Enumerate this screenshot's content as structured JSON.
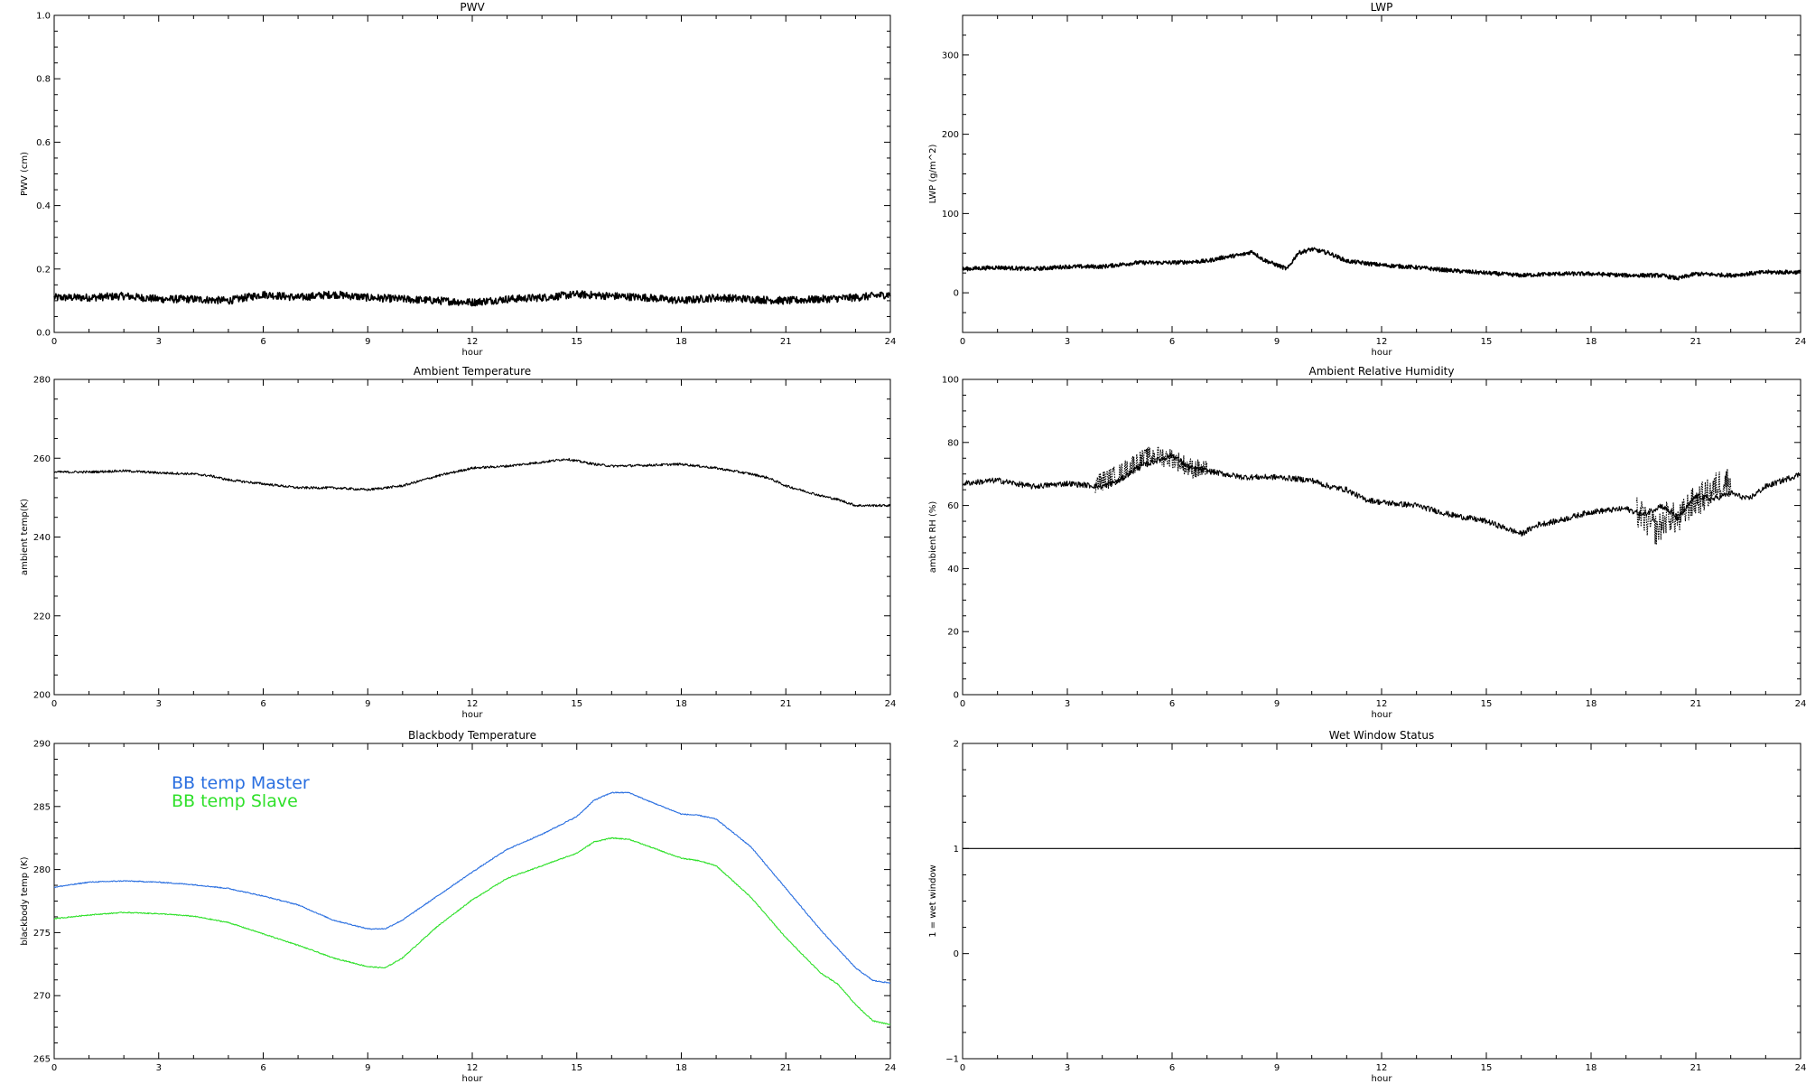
{
  "figure": {
    "colors": {
      "axes": "#000000",
      "master": "#2a6fe0",
      "slave": "#2fe02a",
      "line": "#000000"
    }
  },
  "chart_data": [
    {
      "id": "pwv",
      "type": "line",
      "title": "PWV",
      "xlabel": "hour",
      "ylabel": "PWV (cm)",
      "xlim": [
        0,
        24
      ],
      "ylim": [
        0,
        1.0
      ],
      "xticks": [
        0,
        3,
        6,
        9,
        12,
        15,
        18,
        21,
        24
      ],
      "yticks": [
        0.0,
        0.2,
        0.4,
        0.6,
        0.8,
        1.0
      ],
      "ytick_labels": [
        "0.0",
        "0.2",
        "0.4",
        "0.6",
        "0.8",
        "1.0"
      ],
      "series": [
        {
          "color": "#000000",
          "noise": 0.012,
          "style": "thick",
          "x": [
            0,
            1,
            2,
            3,
            4,
            5,
            6,
            7,
            8,
            9,
            10,
            11,
            12,
            13,
            14,
            15,
            16,
            17,
            18,
            19,
            20,
            21,
            22,
            23,
            24
          ],
          "y": [
            0.11,
            0.11,
            0.115,
            0.105,
            0.105,
            0.1,
            0.12,
            0.11,
            0.12,
            0.11,
            0.105,
            0.1,
            0.095,
            0.105,
            0.11,
            0.12,
            0.115,
            0.11,
            0.1,
            0.11,
            0.105,
            0.1,
            0.105,
            0.11,
            0.12
          ]
        }
      ]
    },
    {
      "id": "lwp",
      "type": "line",
      "title": "LWP",
      "xlabel": "hour",
      "ylabel": "LWP (g/m^2)",
      "xlim": [
        0,
        24
      ],
      "ylim": [
        -50,
        350
      ],
      "xticks": [
        0,
        3,
        6,
        9,
        12,
        15,
        18,
        21,
        24
      ],
      "yticks": [
        0,
        100,
        200,
        300
      ],
      "ytick_labels": [
        "0",
        "100",
        "200",
        "300"
      ],
      "series": [
        {
          "color": "#000000",
          "noise": 2.5,
          "style": "thick",
          "x": [
            0,
            1,
            2,
            3,
            4,
            5,
            6,
            7,
            7.5,
            8,
            8.3,
            8.6,
            9,
            9.3,
            9.6,
            10,
            10.5,
            11,
            12,
            13,
            14,
            15,
            16,
            17,
            18,
            19,
            20,
            20.5,
            21,
            22,
            23,
            24
          ],
          "y": [
            30,
            32,
            30,
            33,
            33,
            38,
            38,
            40,
            45,
            48,
            52,
            42,
            35,
            30,
            50,
            55,
            50,
            40,
            35,
            32,
            28,
            25,
            22,
            24,
            24,
            22,
            22,
            18,
            24,
            22,
            26,
            26
          ]
        }
      ]
    },
    {
      "id": "ambient-temp",
      "type": "line",
      "title": "Ambient Temperature",
      "xlabel": "hour",
      "ylabel": "ambient temp(K)",
      "xlim": [
        0,
        24
      ],
      "ylim": [
        200,
        280
      ],
      "xticks": [
        0,
        3,
        6,
        9,
        12,
        15,
        18,
        21,
        24
      ],
      "yticks": [
        200,
        220,
        240,
        260,
        280
      ],
      "ytick_labels": [
        "200",
        "220",
        "240",
        "260",
        "280"
      ],
      "series": [
        {
          "color": "#000000",
          "noise": 0.3,
          "style": "thin",
          "x": [
            0,
            1,
            2,
            3,
            4,
            4.5,
            5,
            6,
            7,
            8,
            9,
            10,
            11,
            12,
            13,
            14,
            14.7,
            15.5,
            16,
            17,
            18,
            19,
            20,
            20.5,
            21,
            22,
            22.5,
            23,
            23.5,
            24
          ],
          "y": [
            256.5,
            256.5,
            256.8,
            256.3,
            256,
            255.5,
            254.5,
            253.5,
            252.5,
            252.5,
            252,
            253,
            255.5,
            257.5,
            258,
            259,
            259.8,
            258.5,
            258,
            258.2,
            258.5,
            257.5,
            256,
            255,
            253,
            250.5,
            249.5,
            248,
            248,
            248
          ]
        }
      ]
    },
    {
      "id": "ambient-rh",
      "type": "line",
      "title": "Ambient Relative Humidity",
      "xlabel": "hour",
      "ylabel": "ambient RH (%)",
      "xlim": [
        0,
        24
      ],
      "ylim": [
        0,
        100
      ],
      "xticks": [
        0,
        3,
        6,
        9,
        12,
        15,
        18,
        21,
        24
      ],
      "yticks": [
        0,
        20,
        40,
        60,
        80,
        100
      ],
      "ytick_labels": [
        "0",
        "20",
        "40",
        "60",
        "80",
        "100"
      ],
      "series": [
        {
          "color": "#000000",
          "noise": 0.9,
          "style": "thin",
          "x": [
            0,
            1,
            2,
            3,
            4,
            4.5,
            5,
            5.5,
            6,
            6.5,
            7,
            8,
            9,
            10,
            10.5,
            11,
            11.5,
            12,
            13,
            14,
            15,
            15.5,
            16,
            16.5,
            17,
            18,
            19,
            19.5,
            20,
            20.5,
            21,
            21.5,
            22,
            22.5,
            23,
            23.5,
            24
          ],
          "y": [
            67,
            68,
            66,
            67,
            66,
            68,
            72,
            74,
            76,
            72,
            71,
            69,
            69,
            68,
            66,
            65,
            62,
            61,
            60,
            57,
            55,
            53,
            51,
            54,
            55,
            58,
            59,
            57,
            60,
            56,
            63,
            62,
            64,
            62,
            66,
            68,
            70
          ]
        },
        {
          "color": "#000000",
          "noise": 3.2,
          "style": "dotted",
          "x": [
            3.8,
            4.5,
            5,
            5.5,
            6,
            6.5,
            7
          ],
          "y": [
            67,
            70,
            74,
            76,
            75,
            72,
            71
          ]
        },
        {
          "color": "#000000",
          "noise": 5,
          "style": "dotted",
          "x": [
            19.3,
            19.6,
            19.9,
            20.2,
            20.5,
            20.8,
            21.1,
            21.4,
            21.7,
            22
          ],
          "y": [
            58,
            55,
            52,
            57,
            55,
            60,
            62,
            64,
            67,
            68
          ]
        }
      ]
    },
    {
      "id": "bb-temp",
      "type": "line",
      "title": "Blackbody Temperature",
      "xlabel": "hour",
      "ylabel": "blackbody temp (K)",
      "xlim": [
        0,
        24
      ],
      "ylim": [
        265,
        290
      ],
      "xticks": [
        0,
        3,
        6,
        9,
        12,
        15,
        18,
        21,
        24
      ],
      "yticks": [
        265,
        270,
        275,
        280,
        285,
        290
      ],
      "ytick_labels": [
        "265",
        "270",
        "275",
        "280",
        "285",
        "290"
      ],
      "legend": [
        "BB temp Master",
        "BB temp Slave"
      ],
      "series": [
        {
          "name": "BB temp Master",
          "color": "#2a6fe0",
          "noise": 0.04,
          "style": "thin",
          "x": [
            0,
            1,
            2,
            3,
            4,
            5,
            6,
            7,
            8,
            9,
            9.5,
            10,
            11,
            12,
            13,
            14,
            15,
            15.5,
            16,
            16.5,
            17,
            18,
            18.5,
            19,
            20,
            21,
            22,
            23,
            23.5,
            24
          ],
          "y": [
            278.6,
            279,
            279.1,
            279,
            278.8,
            278.5,
            277.9,
            277.2,
            276,
            275.3,
            275.3,
            276,
            277.9,
            279.8,
            281.6,
            282.8,
            284.2,
            285.5,
            286.1,
            286.1,
            285.5,
            284.4,
            284.3,
            284,
            281.8,
            278.5,
            275.2,
            272.2,
            271.2,
            271
          ]
        },
        {
          "name": "BB temp Slave",
          "color": "#2fe02a",
          "noise": 0.04,
          "style": "thin",
          "x": [
            0,
            1,
            2,
            3,
            4,
            5,
            6,
            7,
            8,
            9,
            9.5,
            10,
            11,
            12,
            13,
            14,
            15,
            15.5,
            16,
            16.5,
            17,
            18,
            18.5,
            19,
            20,
            21,
            22,
            22.5,
            23,
            23.5,
            24
          ],
          "y": [
            276.1,
            276.4,
            276.6,
            276.5,
            276.3,
            275.8,
            274.9,
            274,
            273,
            272.3,
            272.2,
            273,
            275.5,
            277.6,
            279.3,
            280.3,
            281.3,
            282.2,
            282.5,
            282.4,
            281.9,
            280.9,
            280.7,
            280.3,
            277.8,
            274.6,
            271.8,
            270.9,
            269.3,
            268,
            267.7
          ]
        }
      ]
    },
    {
      "id": "wet-window",
      "type": "line",
      "title": "Wet Window Status",
      "xlabel": "hour",
      "ylabel": "1 = wet window",
      "xlim": [
        0,
        24
      ],
      "ylim": [
        -1,
        2
      ],
      "xticks": [
        0,
        3,
        6,
        9,
        12,
        15,
        18,
        21,
        24
      ],
      "yticks": [
        -1,
        0,
        1,
        2
      ],
      "ytick_labels": [
        "−1",
        "0",
        "1",
        "2"
      ],
      "series": [
        {
          "color": "#000000",
          "noise": 0,
          "style": "thin",
          "x": [
            0,
            24
          ],
          "y": [
            1,
            1
          ]
        }
      ]
    }
  ]
}
